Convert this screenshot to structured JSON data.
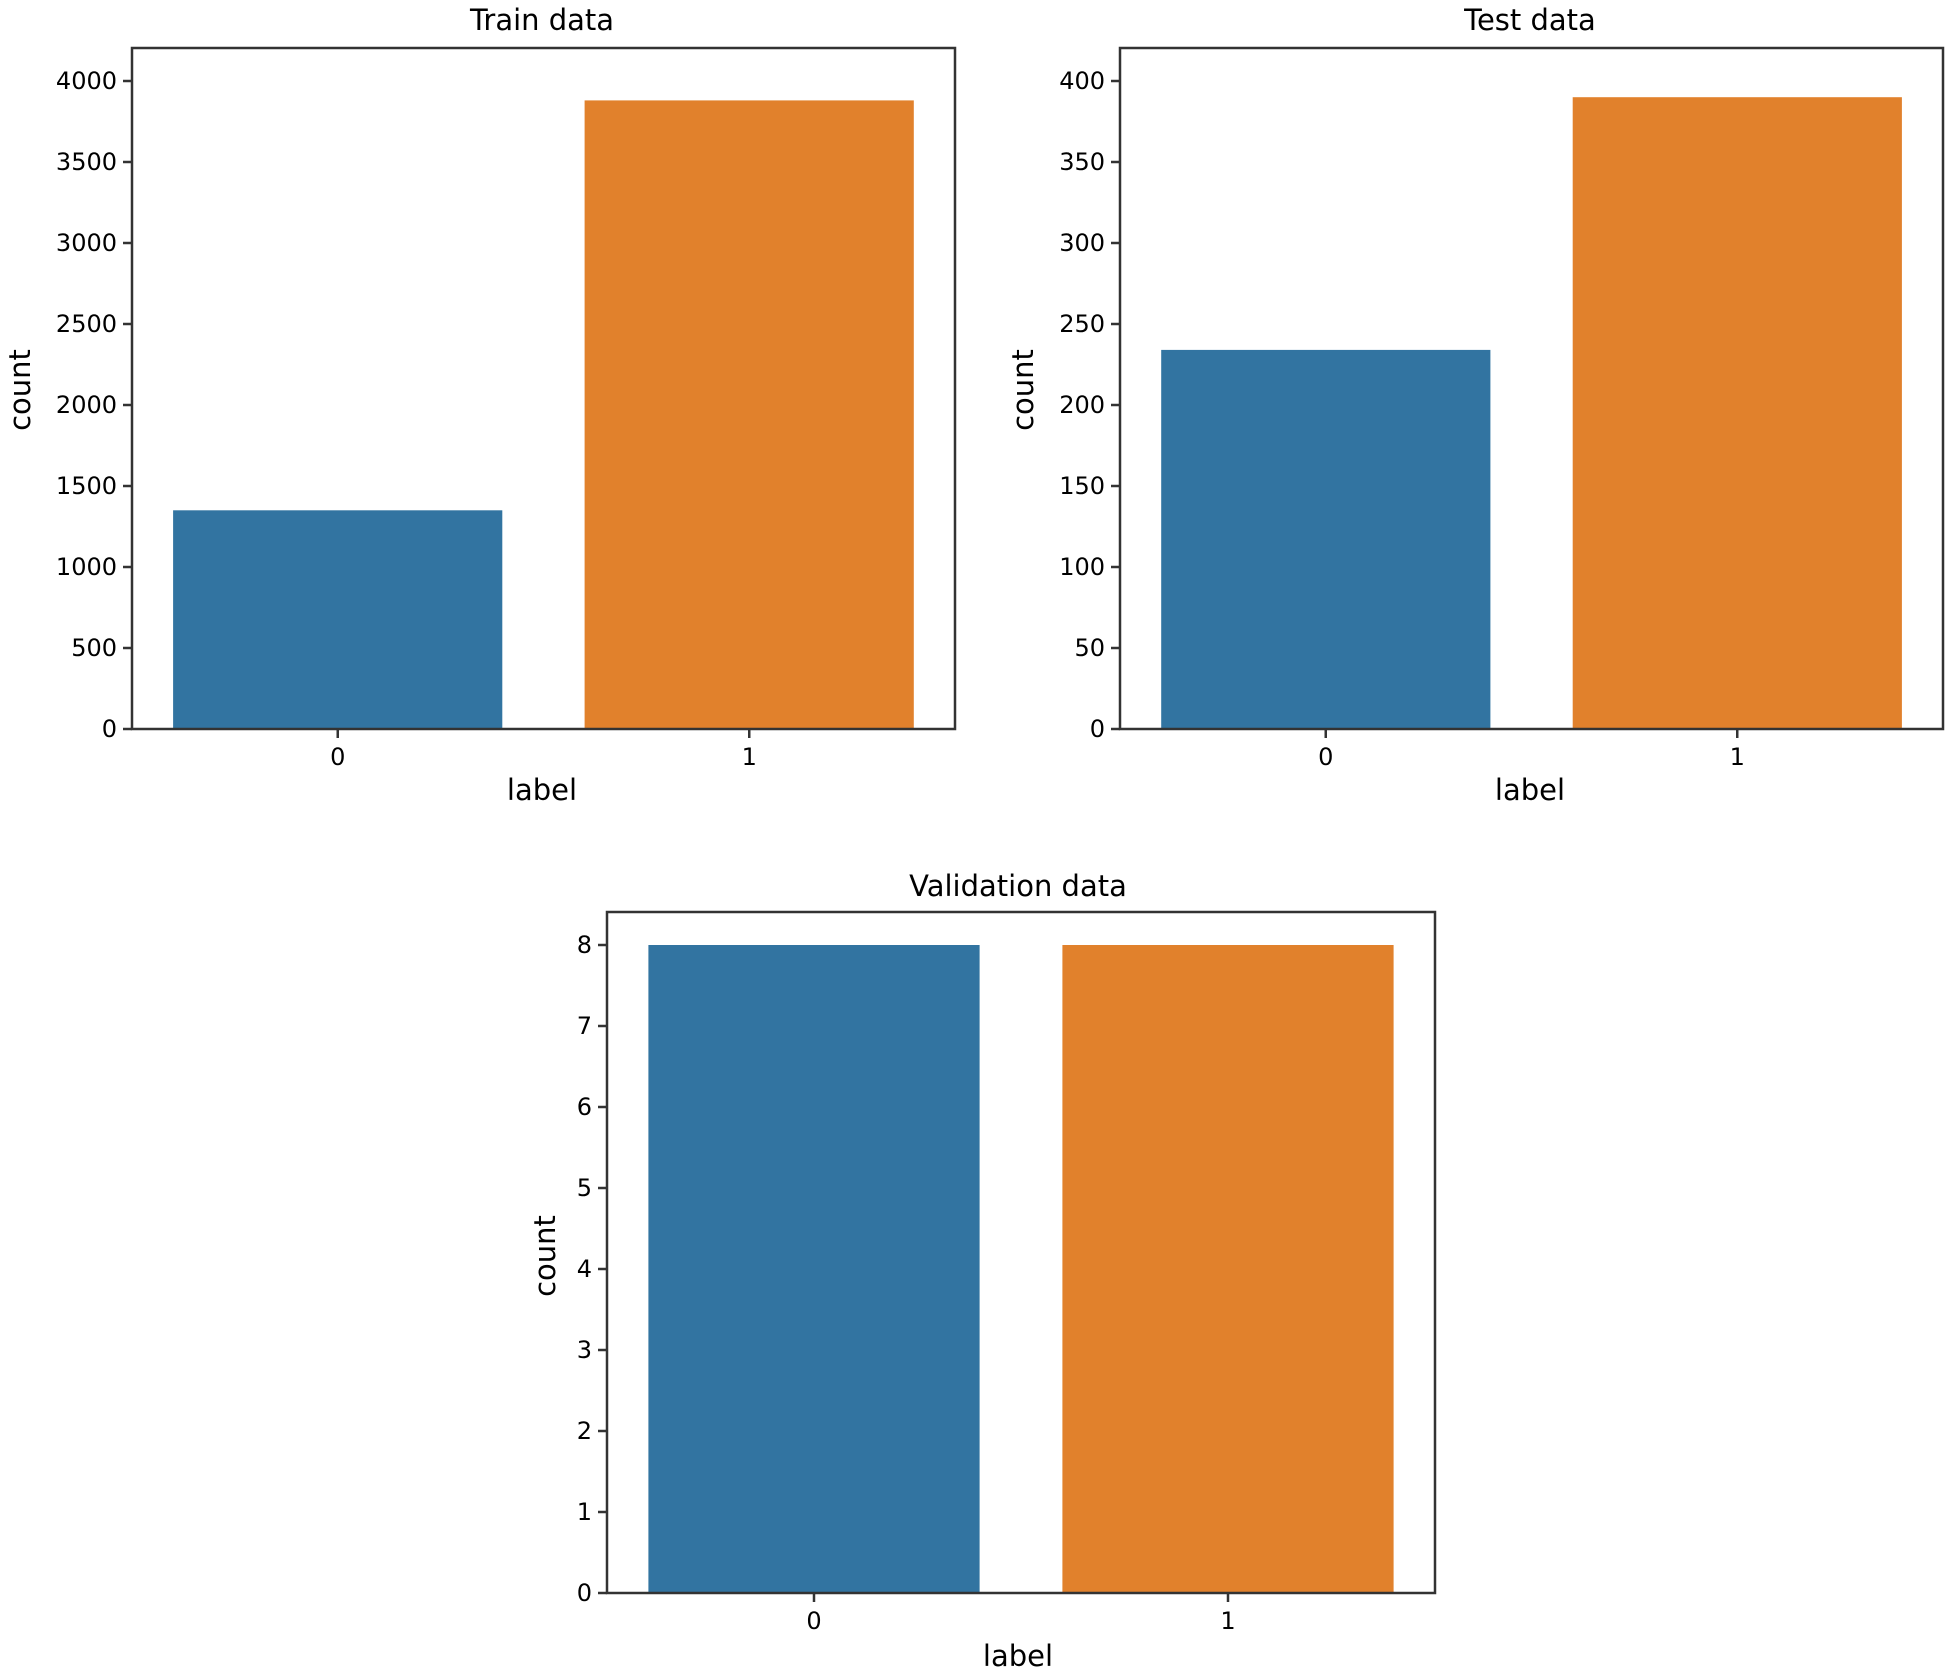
{
  "chart_data": [
    {
      "type": "bar",
      "title": "Train data",
      "xlabel": "label",
      "ylabel": "count",
      "categories": [
        "0",
        "1"
      ],
      "values": [
        1350,
        3880
      ],
      "colors": [
        "#3274a1",
        "#e1812c"
      ],
      "ylim": [
        0,
        4000
      ],
      "yticks": [
        0,
        500,
        1000,
        1500,
        2000,
        2500,
        3000,
        3500,
        4000
      ],
      "grid": false
    },
    {
      "type": "bar",
      "title": "Test data",
      "xlabel": "label",
      "ylabel": "count",
      "categories": [
        "0",
        "1"
      ],
      "values": [
        234,
        390
      ],
      "colors": [
        "#3274a1",
        "#e1812c"
      ],
      "ylim": [
        0,
        400
      ],
      "yticks": [
        0,
        50,
        100,
        150,
        200,
        250,
        300,
        350,
        400
      ],
      "grid": false
    },
    {
      "type": "bar",
      "title": "Validation data",
      "xlabel": "label",
      "ylabel": "count",
      "categories": [
        "0",
        "1"
      ],
      "values": [
        8,
        8
      ],
      "colors": [
        "#3274a1",
        "#e1812c"
      ],
      "ylim": [
        0,
        8
      ],
      "yticks": [
        0,
        1,
        2,
        3,
        4,
        5,
        6,
        7,
        8
      ],
      "grid": false
    }
  ]
}
